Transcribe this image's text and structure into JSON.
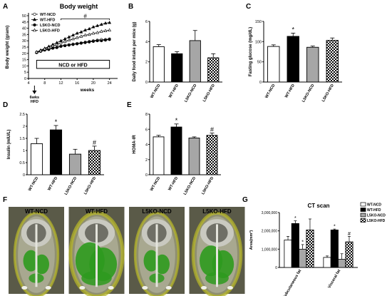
{
  "chart_data": [
    {
      "panel": "A",
      "type": "line",
      "title": "Body weight",
      "xlabel": "weeks",
      "ylabel": "Body weight (gram)",
      "xlim": [
        4,
        26
      ],
      "ylim": [
        0,
        50
      ],
      "xticks": [
        "4",
        "8",
        "12",
        "16",
        "20",
        "24"
      ],
      "yticks": [
        "0",
        "5",
        "10",
        "15",
        "20",
        "25",
        "30",
        "35",
        "40",
        "45",
        "50"
      ],
      "legend": "top-left",
      "annotation_bar": "NCD or HFD",
      "arrow_label": "6wks HFD",
      "significance": "#",
      "x": [
        6,
        7,
        8,
        9,
        10,
        11,
        12,
        13,
        14,
        15,
        16,
        17,
        18,
        19,
        20,
        21,
        22,
        23,
        24
      ],
      "series": [
        {
          "name": "WT-NCD",
          "marker": "open-circle",
          "values": [
            21,
            22,
            23,
            23.5,
            24.5,
            25,
            26,
            26.5,
            27,
            27.5,
            28,
            28.5,
            29,
            29.5,
            30,
            30.5,
            31,
            31,
            31.5
          ]
        },
        {
          "name": "WT-HFD",
          "marker": "filled-triangle",
          "values": [
            21,
            22.5,
            24,
            25.5,
            27,
            28.5,
            30,
            31.5,
            33,
            34.5,
            36,
            37,
            38.5,
            39.5,
            41,
            42,
            43,
            44,
            44.5
          ]
        },
        {
          "name": "L5KO-NCD",
          "marker": "filled-circle",
          "values": [
            20.5,
            21.5,
            22.5,
            23,
            24,
            24.5,
            25.5,
            26,
            26.5,
            27,
            27.5,
            28,
            28.5,
            29,
            29.5,
            30,
            30,
            30.5,
            31
          ]
        },
        {
          "name": "L5KO-HFD",
          "marker": "open-triangle",
          "values": [
            21,
            22,
            23.5,
            24.5,
            26,
            27,
            28.5,
            29.5,
            30.5,
            31.5,
            32.5,
            33.5,
            34.5,
            35,
            36,
            36.5,
            37.5,
            38,
            38.5
          ]
        }
      ]
    },
    {
      "panel": "B",
      "type": "bar",
      "ylabel": "Daily food intake per mice (g)",
      "ylim": [
        0,
        6
      ],
      "yticks": [
        "0",
        "2",
        "4",
        "6"
      ],
      "categories": [
        "WT-NCD",
        "WT-HFD",
        "L5KO-NCD",
        "L5KO-HFD"
      ],
      "values": [
        3.5,
        2.8,
        4.1,
        2.4
      ],
      "errors": [
        0.2,
        0.2,
        1.0,
        0.4
      ],
      "marks": [
        "",
        "",
        "",
        ""
      ]
    },
    {
      "panel": "C",
      "type": "bar",
      "ylabel": "Fasting glucose (mg/dL)",
      "ylim": [
        0,
        150
      ],
      "yticks": [
        "0",
        "50",
        "100",
        "150"
      ],
      "categories": [
        "WT-NCD",
        "WT-HFD",
        "L5KO-NCD",
        "L5KO-HFD"
      ],
      "values": [
        88,
        113,
        86,
        103
      ],
      "errors": [
        4,
        8,
        3,
        6
      ],
      "marks": [
        "",
        "*",
        "",
        ""
      ]
    },
    {
      "panel": "D",
      "type": "bar",
      "ylabel": "Insulin (mIU/L)",
      "ylim": [
        0,
        2.5
      ],
      "yticks": [
        "0",
        "0.5",
        "1",
        "1.5",
        "2",
        "2.5"
      ],
      "categories": [
        "WT-NCD",
        "WT-HFD",
        "L5KO-NCD",
        "L5KO-HFD"
      ],
      "values": [
        1.28,
        1.85,
        0.85,
        1.0
      ],
      "errors": [
        0.22,
        0.18,
        0.2,
        0.18
      ],
      "marks": [
        "",
        "*",
        "",
        "#"
      ]
    },
    {
      "panel": "E",
      "type": "bar",
      "ylabel": "HOMA-IR",
      "ylim": [
        0,
        8
      ],
      "yticks": [
        "0",
        "2",
        "4",
        "6",
        "8"
      ],
      "categories": [
        "WT-NCD",
        "WT-HFD",
        "L5KO-NCD",
        "L5KO-HFD"
      ],
      "values": [
        5.0,
        6.3,
        4.85,
        5.2
      ],
      "errors": [
        0.2,
        0.4,
        0.15,
        0.3
      ],
      "marks": [
        "",
        "*",
        "",
        "#"
      ]
    },
    {
      "panel": "G",
      "type": "bar",
      "title": "CT scan",
      "ylabel": "Area(mm²)",
      "ylim": [
        0,
        3000000
      ],
      "yticks": [
        "0",
        "1,000,000",
        "2,000,000",
        "3,000,000"
      ],
      "categories": [
        "Subcutaneous fat",
        "Visceral fat"
      ],
      "legend": "right",
      "series": [
        {
          "name": "WT-NCD",
          "values": [
            1500000,
            550000
          ],
          "errors": [
            200000,
            80000
          ],
          "marks": [
            "",
            ""
          ]
        },
        {
          "name": "WT-HFD",
          "values": [
            2400000,
            2050000
          ],
          "errors": [
            150000,
            50000
          ],
          "marks": [
            "*",
            "*"
          ]
        },
        {
          "name": "L5KO-NCD",
          "values": [
            1000000,
            450000
          ],
          "errors": [
            250000,
            300000
          ],
          "marks": [
            "*",
            ""
          ]
        },
        {
          "name": "L5KO-HFD",
          "values": [
            2050000,
            1400000
          ],
          "errors": [
            600000,
            300000
          ],
          "marks": [
            "",
            "#"
          ]
        }
      ]
    }
  ],
  "panel_letters": {
    "A": "A",
    "B": "B",
    "C": "C",
    "D": "D",
    "E": "E",
    "F": "F",
    "G": "G"
  },
  "scan_panel": {
    "images": [
      {
        "label": "WT-NCD",
        "fat": "low"
      },
      {
        "label": "WT-HFD",
        "fat": "high"
      },
      {
        "label": "L5KO-NCD",
        "fat": "low"
      },
      {
        "label": "L5KO-HFD",
        "fat": "medium"
      }
    ]
  },
  "colors": {
    "WT-NCD": "#ffffff",
    "WT-HFD": "#000000",
    "L5KO-NCD": "#a6a6a6",
    "L5KO-HFD": "#ffffff",
    "fat_green": "#2e9a1e",
    "scan_bg": "#8a8a6a"
  }
}
